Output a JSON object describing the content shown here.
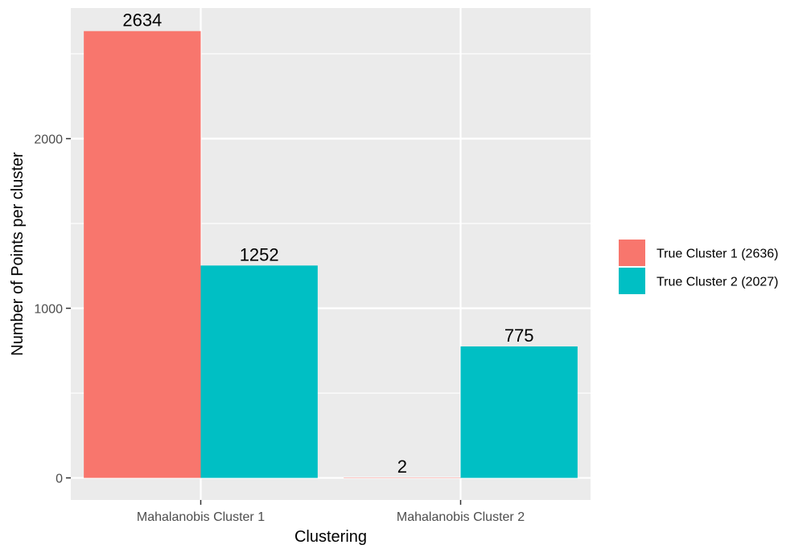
{
  "chart_data": {
    "type": "bar",
    "categories": [
      "Mahalanobis Cluster 1",
      "Mahalanobis Cluster 2"
    ],
    "series": [
      {
        "name": "True Cluster 1 (2636)",
        "values": [
          2634,
          2
        ],
        "color": "#F8766D"
      },
      {
        "name": "True Cluster 2 (2027)",
        "values": [
          1252,
          775
        ],
        "color": "#00BFC4"
      }
    ],
    "data_labels": [
      [
        2634,
        2
      ],
      [
        1252,
        775
      ]
    ],
    "title": "",
    "xlabel": "Clustering",
    "ylabel": "Number of Points per cluster",
    "ylim": [
      -130,
      2770
    ],
    "yticks": [
      0,
      1000,
      2000
    ],
    "ytick_labels": [
      "0",
      "1000",
      "2000"
    ],
    "grid": true,
    "legend_position": "right",
    "panel_background": "#EBEBEB",
    "grid_color": "#FFFFFF"
  }
}
